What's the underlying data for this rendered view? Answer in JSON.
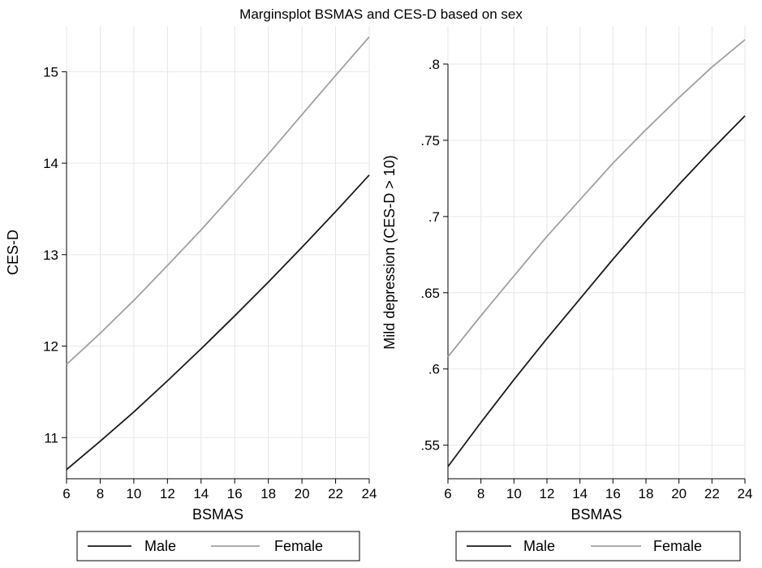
{
  "figure_title": "Marginsplot BSMAS and CES-D based on sex",
  "chart_data": [
    {
      "type": "line",
      "title": "Marginsplot BSMAS and CES-D based on sex",
      "xlabel": "BSMAS",
      "ylabel": "CES-D",
      "xlim": [
        6,
        24
      ],
      "ylim": [
        10.55,
        15.5
      ],
      "x_ticks": [
        "6",
        "8",
        "10",
        "12",
        "14",
        "16",
        "18",
        "20",
        "22",
        "24"
      ],
      "y_ticks": [
        "11",
        "12",
        "13",
        "14",
        "15"
      ],
      "grid": true,
      "legend_position": "bottom",
      "x": [
        6,
        8,
        10,
        12,
        14,
        16,
        18,
        20,
        22,
        24
      ],
      "series": [
        {
          "name": "Male",
          "color": "#1a1a1a",
          "values": [
            10.65,
            10.96,
            11.28,
            11.62,
            11.97,
            12.33,
            12.7,
            13.08,
            13.47,
            13.87
          ]
        },
        {
          "name": "Female",
          "color": "#a0a0a0",
          "values": [
            11.8,
            12.14,
            12.5,
            12.88,
            13.27,
            13.68,
            14.1,
            14.53,
            14.96,
            15.38
          ]
        }
      ]
    },
    {
      "type": "line",
      "title": "Marginsplot BSMAS and CES-D based on sex",
      "xlabel": "BSMAS",
      "ylabel": "Mild depression (CES-D > 10)",
      "xlim": [
        6,
        24
      ],
      "ylim": [
        0.528,
        0.825
      ],
      "x_ticks": [
        "6",
        "8",
        "10",
        "12",
        "14",
        "16",
        "18",
        "20",
        "22",
        "24"
      ],
      "y_ticks": [
        ".55",
        ".6",
        ".65",
        ".7",
        ".75",
        ".8"
      ],
      "grid": true,
      "legend_position": "bottom",
      "x": [
        6,
        8,
        10,
        12,
        14,
        16,
        18,
        20,
        22,
        24
      ],
      "series": [
        {
          "name": "Male",
          "color": "#1a1a1a",
          "values": [
            0.536,
            0.565,
            0.593,
            0.62,
            0.646,
            0.672,
            0.697,
            0.721,
            0.744,
            0.766
          ]
        },
        {
          "name": "Female",
          "color": "#a0a0a0",
          "values": [
            0.608,
            0.635,
            0.661,
            0.687,
            0.711,
            0.735,
            0.757,
            0.778,
            0.798,
            0.816
          ]
        }
      ]
    }
  ]
}
